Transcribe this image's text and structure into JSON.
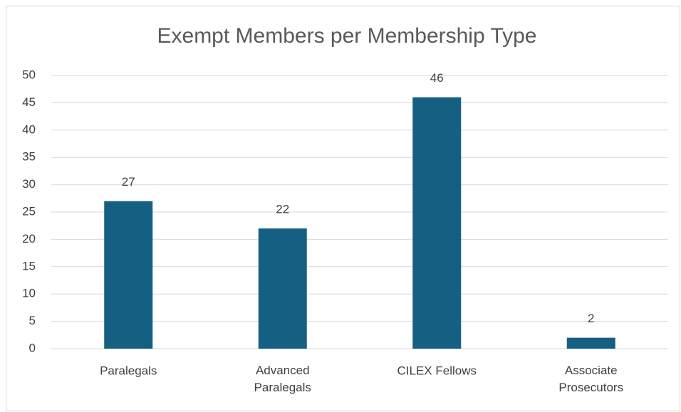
{
  "chart_data": {
    "type": "bar",
    "title": "Exempt Members per Membership Type",
    "categories": [
      "Paralegals",
      "Advanced Paralegals",
      "CILEX Fellows",
      "Associate Prosecutors"
    ],
    "values": [
      27,
      22,
      46,
      2
    ],
    "color": "#156082",
    "ylim": [
      0,
      50
    ],
    "yticks": [
      0,
      5,
      10,
      15,
      20,
      25,
      30,
      35,
      40,
      45,
      50
    ],
    "grid": true
  }
}
